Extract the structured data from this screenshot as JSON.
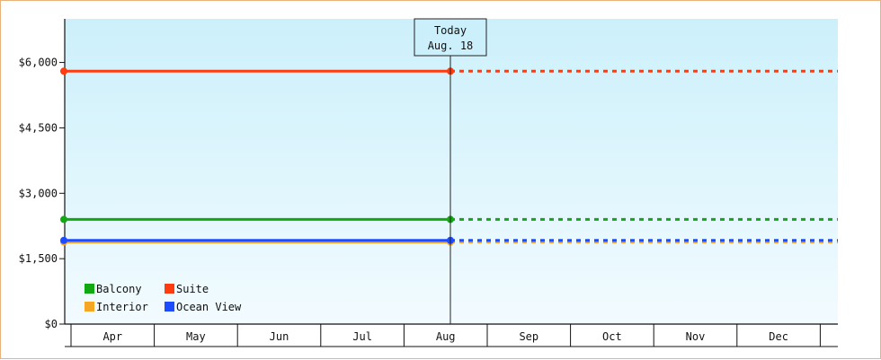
{
  "chart_data": {
    "type": "line",
    "title": "",
    "xlabel": "",
    "ylabel": "",
    "x_labels": [
      "Apr",
      "May",
      "Jun",
      "Jul",
      "Aug",
      "Sep",
      "Oct",
      "Nov",
      "Dec"
    ],
    "y_ticks": [
      "$0",
      "$1,500",
      "$3,000",
      "$4,500",
      "$6,000"
    ],
    "y_tick_values": [
      0,
      1500,
      3000,
      4500,
      6000
    ],
    "ylim": [
      0,
      7000
    ],
    "grid": false,
    "today_marker": {
      "line1": "Today",
      "line2": "Aug. 18"
    },
    "series": [
      {
        "name": "Balcony",
        "color": "#12a812",
        "value": 2400
      },
      {
        "name": "Suite",
        "color": "#ff3b10",
        "value": 5800
      },
      {
        "name": "Interior",
        "color": "#f5a623",
        "value": 1880
      },
      {
        "name": "Ocean View",
        "color": "#1d4cff",
        "value": 1920
      }
    ],
    "legend": {
      "placement": "bottom-left",
      "entries": [
        "Balcony",
        "Suite",
        "Interior",
        "Ocean View"
      ]
    },
    "background_gradient": {
      "top": "#ccf0fb",
      "bottom": "#f2fbff"
    }
  }
}
